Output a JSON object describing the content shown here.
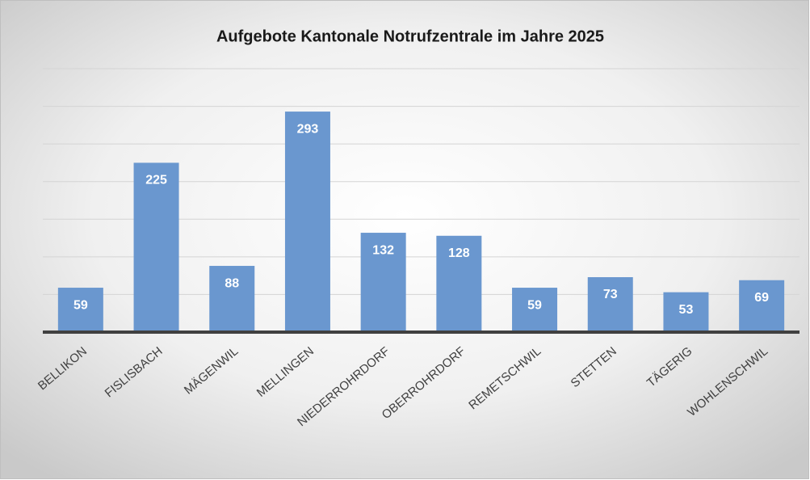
{
  "chart_data": {
    "type": "bar",
    "title": "Aufgebote Kantonale Notrufzentrale im Jahre 2025",
    "categories": [
      "BELLIKON",
      "FISLISBACH",
      "MÄGENWIL",
      "MELLINGEN",
      "NIEDERROHRDORF",
      "OBERROHRDORF",
      "REMETSCHWIL",
      "STETTEN",
      "TÄGERIG",
      "WOHLENSCHWIL"
    ],
    "values": [
      59,
      225,
      88,
      293,
      132,
      128,
      59,
      73,
      53,
      69
    ],
    "color": "#6a97cf",
    "ylim": [
      0,
      350
    ],
    "yticks": [
      0,
      50,
      100,
      150,
      200,
      250,
      300,
      350
    ],
    "grid": true
  }
}
